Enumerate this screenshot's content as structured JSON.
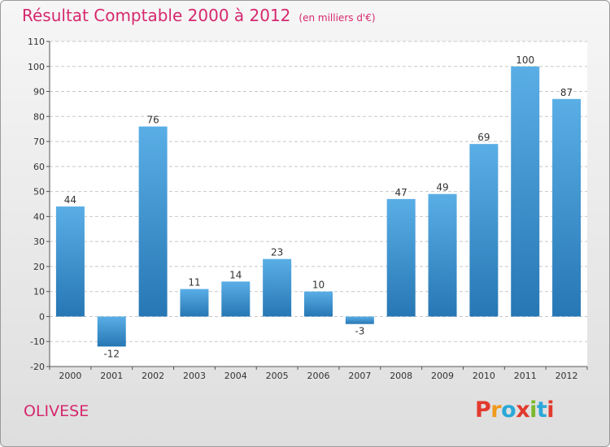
{
  "title": "Résultat Comptable 2000 à 2012",
  "subtitle": "(en milliers d'€)",
  "commune": "OLIVESE",
  "logo": {
    "letters": [
      "P",
      "r",
      "o",
      "x",
      "i",
      "t",
      "i"
    ],
    "colors": [
      "#e23a2e",
      "#f09a1d",
      "#2aa8d8",
      "#e23a2e",
      "#7bb92c",
      "#2aa8d8",
      "#e23a2e"
    ]
  },
  "colors": {
    "title": "#d6286e",
    "bar_light": "#5aaee6",
    "bar_dark": "#2677b4"
  },
  "chart_data": {
    "type": "bar",
    "title": "Résultat Comptable 2000 à 2012",
    "subtitle": "(en milliers d'€)",
    "categories": [
      "2000",
      "2001",
      "2002",
      "2003",
      "2004",
      "2005",
      "2006",
      "2007",
      "2008",
      "2009",
      "2010",
      "2011",
      "2012"
    ],
    "values": [
      44,
      -12,
      76,
      11,
      14,
      23,
      10,
      -3,
      47,
      49,
      69,
      100,
      87
    ],
    "labels": [
      "44",
      "-12",
      "76",
      "11",
      "14",
      "23",
      "10",
      "-3",
      "47",
      "49",
      "69",
      "100",
      "87"
    ],
    "yticks": [
      "-20",
      "-10",
      "0",
      "10",
      "20",
      "30",
      "40",
      "50",
      "60",
      "70",
      "80",
      "90",
      "100",
      "110"
    ],
    "ylim": [
      -20,
      110
    ],
    "grid": true,
    "xlabel": "",
    "ylabel": ""
  }
}
